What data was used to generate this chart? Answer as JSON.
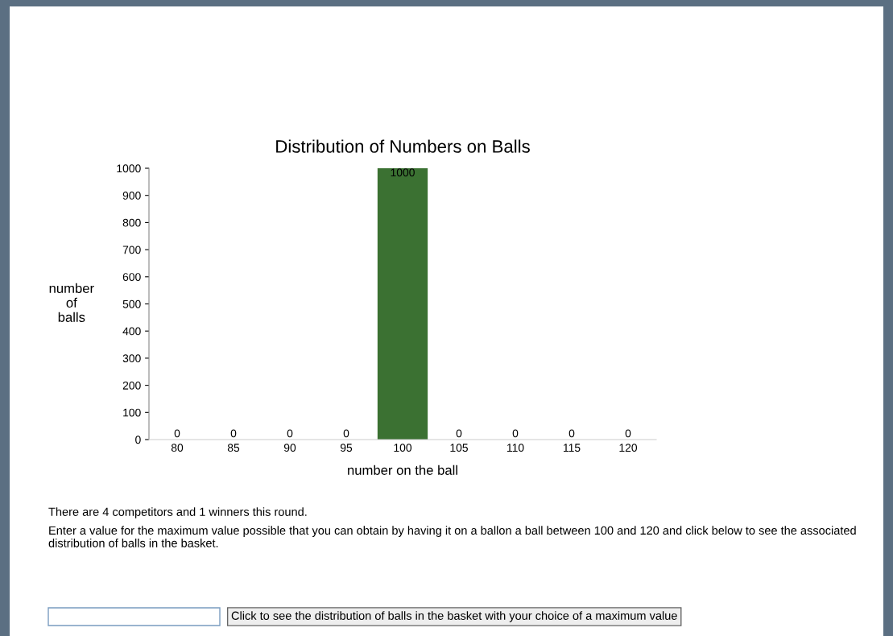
{
  "chart_data": {
    "type": "bar",
    "title": "Distribution of Numbers on Balls",
    "xlabel": "number on the ball",
    "ylabel": "number\nof\nballs",
    "categories": [
      "80",
      "85",
      "90",
      "95",
      "100",
      "105",
      "110",
      "115",
      "120"
    ],
    "values": [
      0,
      0,
      0,
      0,
      1000,
      0,
      0,
      0,
      0
    ],
    "color": "#3b7132",
    "ylim": [
      0,
      1000
    ],
    "yticks": [
      0,
      100,
      200,
      300,
      400,
      500,
      600,
      700,
      800,
      900,
      1000
    ],
    "data_labels": true,
    "grid": false,
    "legend": false,
    "annotations": [
      "There are 4 competitors and 1 winners this round.",
      "Enter a value for the maximum value possible that you can obtain by having it on a ballon a ball between 100 and 120 and click below to see the associated distribution of balls in the basket.",
      "Click to see the distribution of balls in the basket with your choice of a maximum value"
    ]
  }
}
